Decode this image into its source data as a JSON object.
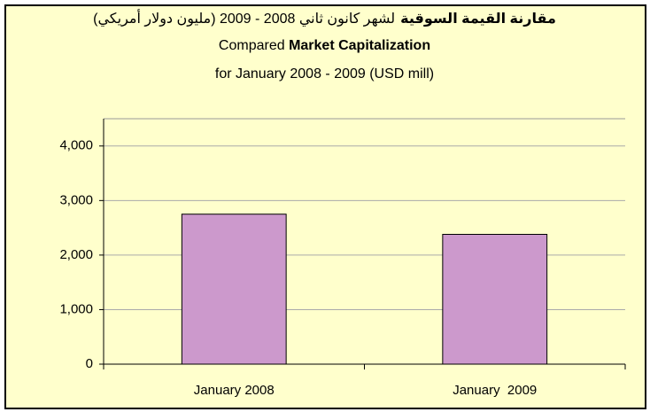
{
  "chart_data": {
    "type": "bar",
    "title": {
      "arabic_bold": "مقارنة القيمة السوقية",
      "arabic": "لشهر كانون ثاني 2008 - 2009 (مليون دولار أمريكي)",
      "english_1": "Compared",
      "english_1_bold": "Market Capitalization",
      "english_2": "for January 2008 - 2009 (USD mill)"
    },
    "categories": [
      "January 2008",
      "January  2009"
    ],
    "values": [
      2750,
      2380
    ],
    "color": "#cc99cc",
    "ylim": [
      0,
      4500
    ],
    "yticks": [
      0,
      {
        "value": 1000,
        "label": "1,000"
      },
      {
        "value": 2000,
        "label": "2,000"
      },
      {
        "value": 3000,
        "label": "3,000"
      },
      {
        "value": 4000,
        "label": "4,000"
      }
    ],
    "grid": true
  }
}
